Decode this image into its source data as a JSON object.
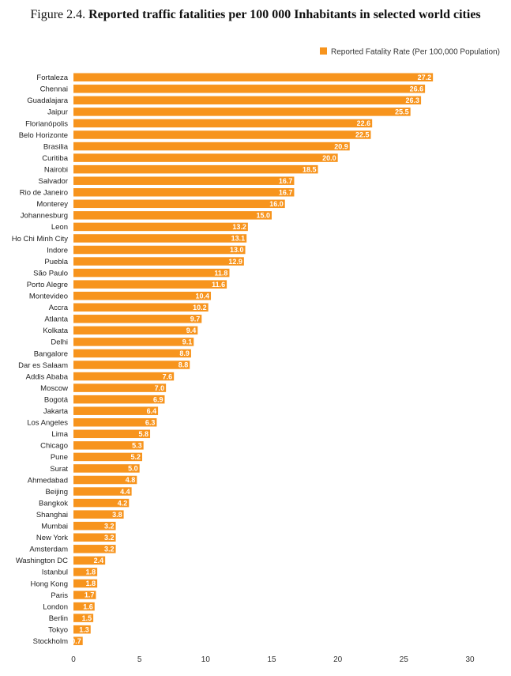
{
  "figure": {
    "label": "Figure 2.4.",
    "title": "Reported traffic fatalities per 100 000 Inhabitants in selected world cities"
  },
  "chart_data": {
    "type": "bar",
    "orientation": "horizontal",
    "title": "Reported traffic fatalities per 100 000 Inhabitants in selected world cities",
    "xlabel": "",
    "ylabel": "",
    "xlim": [
      0,
      30
    ],
    "xticks": [
      0,
      5,
      10,
      15,
      20,
      25,
      30
    ],
    "grid": false,
    "legend": "top-right",
    "bar_color": "#F7941D",
    "categories": [
      "Fortaleza",
      "Chennai",
      "Guadalajara",
      "Jaipur",
      "Florianópolis",
      "Belo Horizonte",
      "Brasilia",
      "Curitiba",
      "Nairobi",
      "Salvador",
      "Rio de Janeiro",
      "Monterey",
      "Johannesburg",
      "Leon",
      "Ho Chi Minh City",
      "Indore",
      "Puebla",
      "São Paulo",
      "Porto Alegre",
      "Montevideo",
      "Accra",
      "Atlanta",
      "Kolkata",
      "Delhi",
      "Bangalore",
      "Dar es Salaam",
      "Addis Ababa",
      "Moscow",
      "Bogotá",
      "Jakarta",
      "Los Angeles",
      "Lima",
      "Chicago",
      "Pune",
      "Surat",
      "Ahmedabad",
      "Beijing",
      "Bangkok",
      "Shanghai",
      "Mumbai",
      "New York",
      "Amsterdam",
      "Washington DC",
      "Istanbul",
      "Hong Kong",
      "Paris",
      "London",
      "Berlin",
      "Tokyo",
      "Stockholm"
    ],
    "series": [
      {
        "name": "Reported Fatality Rate (Per 100,000 Population)",
        "values": [
          27.2,
          26.6,
          26.3,
          25.5,
          22.6,
          22.5,
          20.9,
          20.0,
          18.5,
          16.7,
          16.7,
          16.0,
          15.0,
          13.2,
          13.1,
          13.0,
          12.9,
          11.8,
          11.6,
          10.4,
          10.2,
          9.7,
          9.4,
          9.1,
          8.9,
          8.8,
          7.6,
          7.0,
          6.9,
          6.4,
          6.3,
          5.8,
          5.3,
          5.2,
          5.0,
          4.8,
          4.4,
          4.2,
          3.8,
          3.2,
          3.2,
          3.2,
          2.4,
          1.8,
          1.8,
          1.7,
          1.6,
          1.5,
          1.3,
          0.7
        ],
        "labels": [
          "27.2",
          "26.6",
          "26.3",
          "25.5",
          "22.6",
          "22.5",
          "20.9",
          "20.0",
          "18.5",
          "16.7",
          "16.7",
          "16.0",
          "15.0",
          "13.2",
          "13.1",
          "13.0",
          "12.9",
          "11.8",
          "11.6",
          "10.4",
          "10.2",
          "9.7",
          "9.4",
          "9.1",
          "8.9",
          "8.8",
          "7.6",
          "7.0",
          "6.9",
          "6.4",
          "6.3",
          "5.8",
          "5.3",
          "5.2",
          "5.0",
          "4.8",
          "4.4",
          "4.2",
          "3.8",
          "3.2",
          "3.2",
          "3.2",
          "2.4",
          "1.8",
          "1.8",
          "1.7",
          "1.6",
          "1.5",
          "1.3",
          "0.7"
        ]
      }
    ]
  }
}
